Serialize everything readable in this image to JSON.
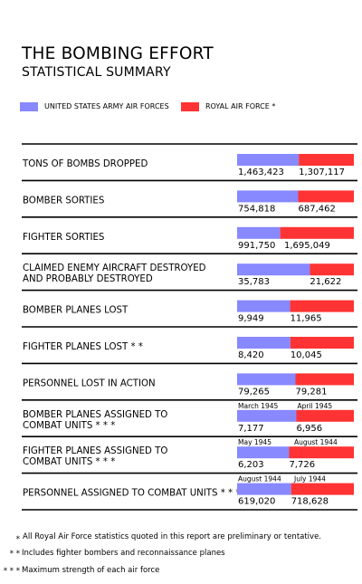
{
  "header": {
    "title": "THE BOMBING EFFORT",
    "subtitle": "STATISTICAL SUMMARY"
  },
  "legend": {
    "usaaf": {
      "label": "UNITED STATES ARMY AIR FORCES",
      "color": "#8888ff"
    },
    "raf": {
      "label": "ROYAL AIR FORCE  *",
      "color": "#ff3333"
    }
  },
  "chart_data": {
    "type": "bar",
    "orientation": "horizontal-stacked-100",
    "series": [
      {
        "name": "UNITED STATES ARMY AIR FORCES",
        "color": "#8888ff",
        "values": [
          1463423,
          754818,
          991750,
          35783,
          9949,
          8420,
          79265,
          7177,
          6203,
          619020
        ]
      },
      {
        "name": "ROYAL AIR FORCE  *",
        "color": "#ff3333",
        "values": [
          1307117,
          687462,
          1695049,
          21622,
          11965,
          10045,
          79281,
          6956,
          7726,
          718628
        ]
      }
    ],
    "rows": [
      {
        "label_lines": [
          "TONS OF BOMBS DROPPED"
        ],
        "usaaf_text": "1,463,423",
        "raf_text": "1,307,117"
      },
      {
        "label_lines": [
          "BOMBER SORTIES"
        ],
        "usaaf_text": "754,818",
        "raf_text": "687,462"
      },
      {
        "label_lines": [
          "FIGHTER SORTIES"
        ],
        "usaaf_text": "991,750",
        "raf_text": "1,695,049"
      },
      {
        "label_lines": [
          "CLAIMED ENEMY AIRCRAFT DESTROYED",
          "AND PROBABLY DESTROYED"
        ],
        "usaaf_text": "35,783",
        "raf_text": "21,622"
      },
      {
        "label_lines": [
          "BOMBER PLANES LOST"
        ],
        "usaaf_text": "9,949",
        "raf_text": "11,965"
      },
      {
        "label_lines": [
          "FIGHTER PLANES LOST  * *"
        ],
        "usaaf_text": "8,420",
        "raf_text": "10,045"
      },
      {
        "label_lines": [
          "PERSONNEL LOST IN ACTION"
        ],
        "usaaf_text": "79,265",
        "raf_text": "79,281"
      },
      {
        "label_lines": [
          "BOMBER PLANES ASSIGNED TO",
          "COMBAT UNITS  * * *"
        ],
        "usaaf_text": "7,177",
        "raf_text": "6,956",
        "usaaf_date": "March  1945",
        "raf_date": "April  1945"
      },
      {
        "label_lines": [
          "FIGHTER PLANES ASSIGNED TO",
          "COMBAT UNITS  * * *"
        ],
        "usaaf_text": "6,203",
        "raf_text": "7,726",
        "usaaf_date": "May  1945",
        "raf_date": "August  1944"
      },
      {
        "label_lines": [
          "PERSONNEL ASSIGNED TO COMBAT UNITS  * * *"
        ],
        "usaaf_text": "619,020",
        "raf_text": "718,628",
        "usaaf_date": "August  1944",
        "raf_date": "July  1944"
      }
    ]
  },
  "footnotes": [
    {
      "mark": "*",
      "text": "All Royal Air Force statistics quoted in this report are preliminary or tentative."
    },
    {
      "mark": "* *",
      "text": "Includes fighter bombers and reconnaissance planes"
    },
    {
      "mark": "* * *",
      "text": "Maximum strength of each air force"
    }
  ]
}
